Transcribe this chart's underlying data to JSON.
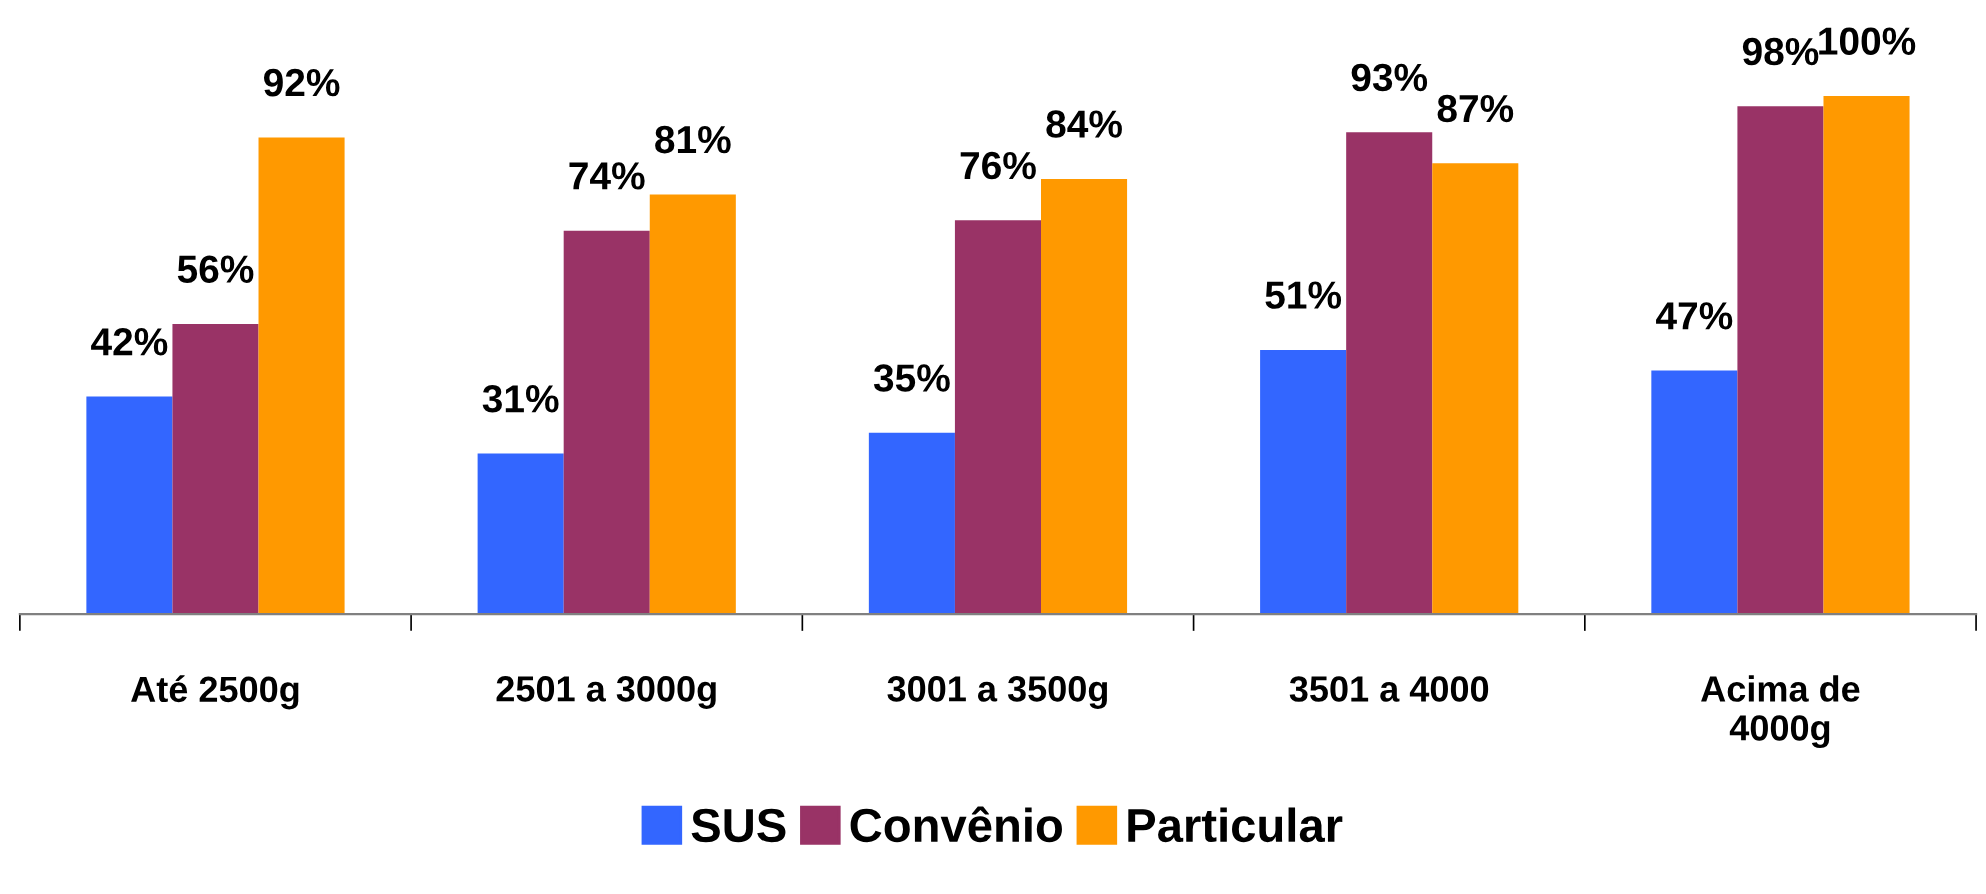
{
  "chart_data": {
    "type": "bar",
    "categories": [
      "Até 2500g",
      "2501 a 3000g",
      "3001 a 3500g",
      "3501 a 4000",
      "Acima de\n4000g"
    ],
    "series": [
      {
        "name": "SUS",
        "color": "#3366ff",
        "values": [
          42,
          31,
          35,
          51,
          47
        ],
        "value_labels": [
          "42%",
          "31%",
          "35%",
          "51%",
          "47%"
        ]
      },
      {
        "name": "Convênio",
        "color": "#993366",
        "values": [
          56,
          74,
          76,
          93,
          98
        ],
        "value_labels": [
          "56%",
          "74%",
          "76%",
          "93%",
          "98%"
        ]
      },
      {
        "name": "Particular",
        "color": "#ff9900",
        "values": [
          92,
          81,
          84,
          87,
          100
        ],
        "value_labels": [
          "92%",
          "81%",
          "84%",
          "87%",
          "100%"
        ]
      }
    ],
    "legend": "bottom",
    "grid": false
  }
}
